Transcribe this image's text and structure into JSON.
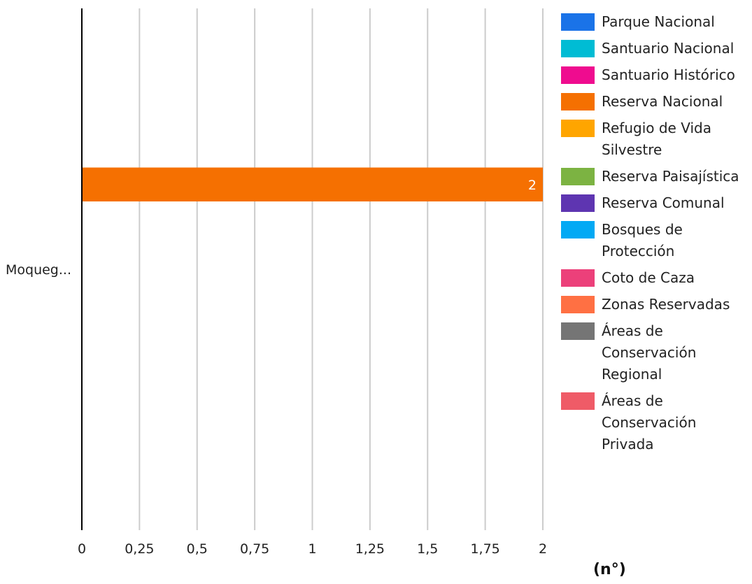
{
  "chart_data": {
    "type": "bar",
    "orientation": "horizontal",
    "categories": [
      "Moqueg..."
    ],
    "series": [
      {
        "name": "Parque Nacional",
        "color": "#1a73e8",
        "values": [
          0
        ]
      },
      {
        "name": "Santuario Nacional",
        "color": "#00bcd4",
        "values": [
          0
        ]
      },
      {
        "name": "Santuario Histórico",
        "color": "#ef0c8f",
        "values": [
          0
        ]
      },
      {
        "name": "Reserva Nacional",
        "color": "#f57001",
        "values": [
          2
        ]
      },
      {
        "name": "Refugio de Vida Silvestre",
        "color": "#ffa500",
        "values": [
          0
        ]
      },
      {
        "name": "Reserva Paisajística",
        "color": "#7cb342",
        "values": [
          0
        ]
      },
      {
        "name": "Reserva Comunal",
        "color": "#5e35b1",
        "values": [
          0
        ]
      },
      {
        "name": "Bosques de Protección",
        "color": "#03a9f4",
        "values": [
          0
        ]
      },
      {
        "name": "Coto de Caza",
        "color": "#ec407a",
        "values": [
          0
        ]
      },
      {
        "name": "Zonas Reservadas",
        "color": "#ff7043",
        "values": [
          0
        ]
      },
      {
        "name": "Áreas de Conservación Regional",
        "color": "#757575",
        "values": [
          0
        ]
      },
      {
        "name": "Áreas de Conservación Privada",
        "color": "#ef5b67",
        "values": [
          0
        ]
      }
    ],
    "xlim": [
      0,
      2
    ],
    "xticks": [
      0,
      0.25,
      0.5,
      0.75,
      1,
      1.25,
      1.5,
      1.75,
      2
    ],
    "xtick_labels": [
      "0",
      "0,25",
      "0,5",
      "0,75",
      "1",
      "1,25",
      "1,5",
      "1,75",
      "2"
    ],
    "xlabel": "(n°)",
    "data_labels": [
      "2"
    ],
    "grid": "vertical",
    "legend_position": "right"
  }
}
